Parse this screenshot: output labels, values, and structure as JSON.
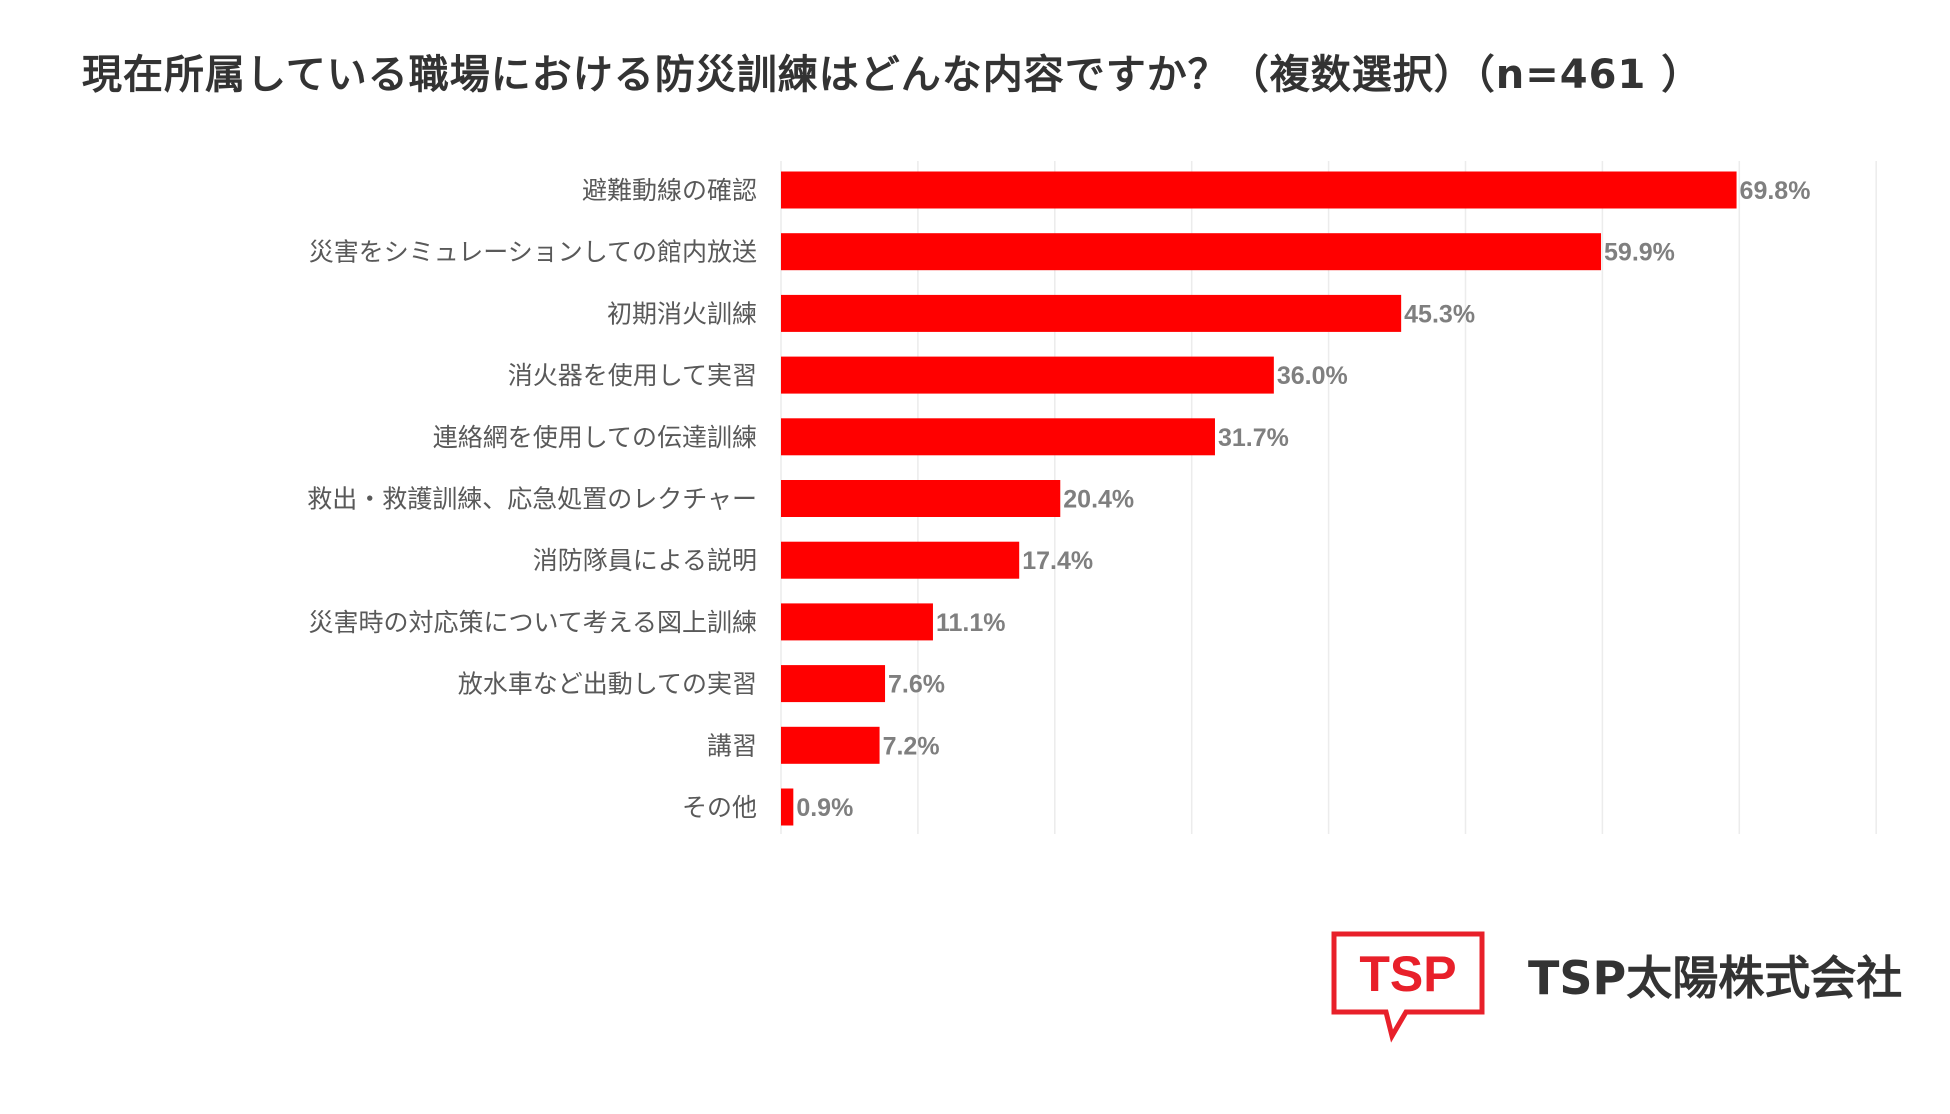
{
  "title": "現在所属している職場における防災訓練はどんな内容ですか？（複数選択）（n=461 ）",
  "brand": {
    "logo_text": "TSP",
    "company_name": "TSP太陽株式会社",
    "accent_color": "#e8202a"
  },
  "colors": {
    "bar": "#ff0000",
    "label_text": "#595959",
    "value_text": "#7f7f7f",
    "grid": "#ececec"
  },
  "chart_data": {
    "type": "bar",
    "orientation": "horizontal",
    "categories": [
      "避難動線の確認",
      "災害をシミュレーションしての館内放送",
      "初期消火訓練",
      "消火器を使用して実習",
      "連絡網を使用しての伝達訓練",
      "救出・救護訓練、応急処置のレクチャー",
      "消防隊員による説明",
      "災害時の対応策について考える図上訓練",
      "放水車など出動しての実習",
      "講習",
      "その他"
    ],
    "values": [
      69.8,
      59.9,
      45.3,
      36.0,
      31.7,
      20.4,
      17.4,
      11.1,
      7.6,
      7.2,
      0.9
    ],
    "value_labels": [
      "69.8%",
      "59.9%",
      "45.3%",
      "36.0%",
      "31.7%",
      "20.4%",
      "17.4%",
      "11.1%",
      "7.6%",
      "7.2%",
      "0.9%"
    ],
    "xlim": [
      0,
      80
    ],
    "grid_step": 10,
    "grid": true,
    "legend": "none"
  }
}
